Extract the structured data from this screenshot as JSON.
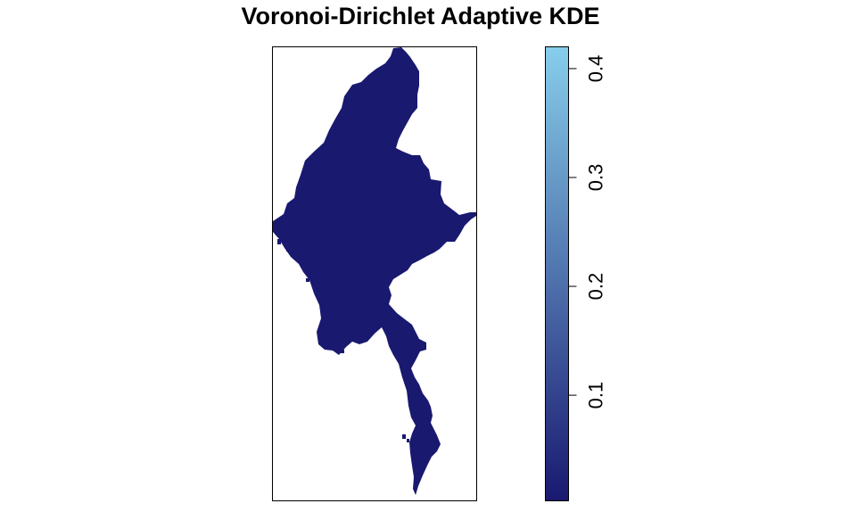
{
  "chart_data": {
    "type": "heatmap",
    "title": "Voronoi-Dirichlet Adaptive KDE",
    "subtitle": "",
    "xlabel": "",
    "ylabel": "",
    "region_fill_value": 0.003,
    "color_scale": {
      "low": "#191970",
      "high": "#87CEEB",
      "range": [
        0.003,
        0.42
      ],
      "ticks": [
        0.1,
        0.2,
        0.3,
        0.4
      ],
      "tick_labels": [
        "0.1",
        "0.2",
        "0.3",
        "0.4"
      ]
    },
    "colors": {
      "frame": "#000000",
      "background": "#ffffff"
    }
  }
}
